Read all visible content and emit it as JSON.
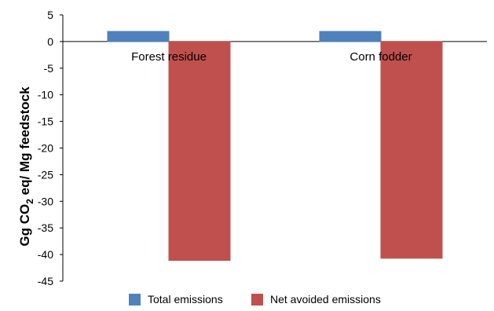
{
  "chart_data": {
    "type": "bar",
    "categories": [
      "Forest residue",
      "Corn fodder"
    ],
    "series": [
      {
        "name": "Total emissions",
        "values": [
          1.9,
          1.9
        ],
        "color": "#4f81bd"
      },
      {
        "name": "Net avoided emissions",
        "values": [
          -41.1,
          -40.7
        ],
        "color": "#c0504d"
      }
    ],
    "ylim": [
      -45,
      5
    ],
    "ytick_step": 5,
    "ylabel": {
      "main": "Gg CO",
      "sub": "2",
      "rest": " eq/ Mg feedstock"
    },
    "grid": false,
    "legend": "bottom"
  }
}
